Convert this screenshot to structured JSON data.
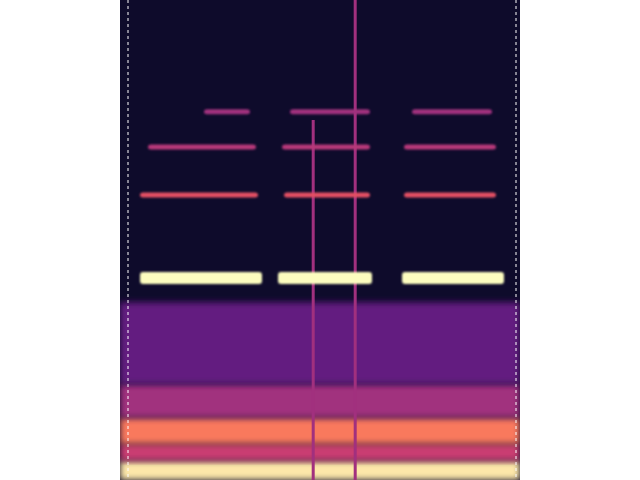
{
  "chart_data": {
    "type": "spectrogram",
    "xlim": [
      0,
      100
    ],
    "ylim": [
      0,
      100
    ],
    "zlim": [
      0,
      1
    ],
    "tick_labels": false,
    "background": 0.08,
    "bands": [
      {
        "y0": 0,
        "y1": 4,
        "z": 0.95
      },
      {
        "y0": 4,
        "y1": 7.5,
        "z": 0.55
      },
      {
        "y0": 7.5,
        "y1": 13,
        "z": 0.72
      },
      {
        "y0": 13,
        "y1": 20,
        "z": 0.45
      },
      {
        "y0": 20,
        "y1": 37,
        "z": 0.3
      }
    ],
    "tones": [
      {
        "x0": 5,
        "x1": 35.5,
        "y": 42.1,
        "z": 1.0
      },
      {
        "x0": 5,
        "x1": 34.5,
        "y": 59.4,
        "z": 0.62
      },
      {
        "x0": 7,
        "x1": 34,
        "y": 69.4,
        "z": 0.5
      },
      {
        "x0": 21,
        "x1": 32.5,
        "y": 76.7,
        "z": 0.45
      },
      {
        "x0": 39.5,
        "x1": 63,
        "y": 42.1,
        "z": 1.0
      },
      {
        "x0": 41,
        "x1": 62.5,
        "y": 59.4,
        "z": 0.62
      },
      {
        "x0": 40.5,
        "x1": 62.5,
        "y": 69.4,
        "z": 0.5
      },
      {
        "x0": 42.5,
        "x1": 62.5,
        "y": 76.7,
        "z": 0.45
      },
      {
        "x0": 70.5,
        "x1": 96,
        "y": 42.1,
        "z": 1.0
      },
      {
        "x0": 71,
        "x1": 94,
        "y": 59.4,
        "z": 0.62
      },
      {
        "x0": 71,
        "x1": 94,
        "y": 69.4,
        "z": 0.5
      },
      {
        "x0": 73,
        "x1": 93,
        "y": 76.7,
        "z": 0.45
      }
    ],
    "clicks": [
      {
        "x": 48.3,
        "y0": 0,
        "y1": 75,
        "z": 0.45
      },
      {
        "x": 58.8,
        "y0": 0,
        "y1": 100,
        "z": 0.45
      }
    ],
    "markers": [
      2,
      99
    ]
  }
}
